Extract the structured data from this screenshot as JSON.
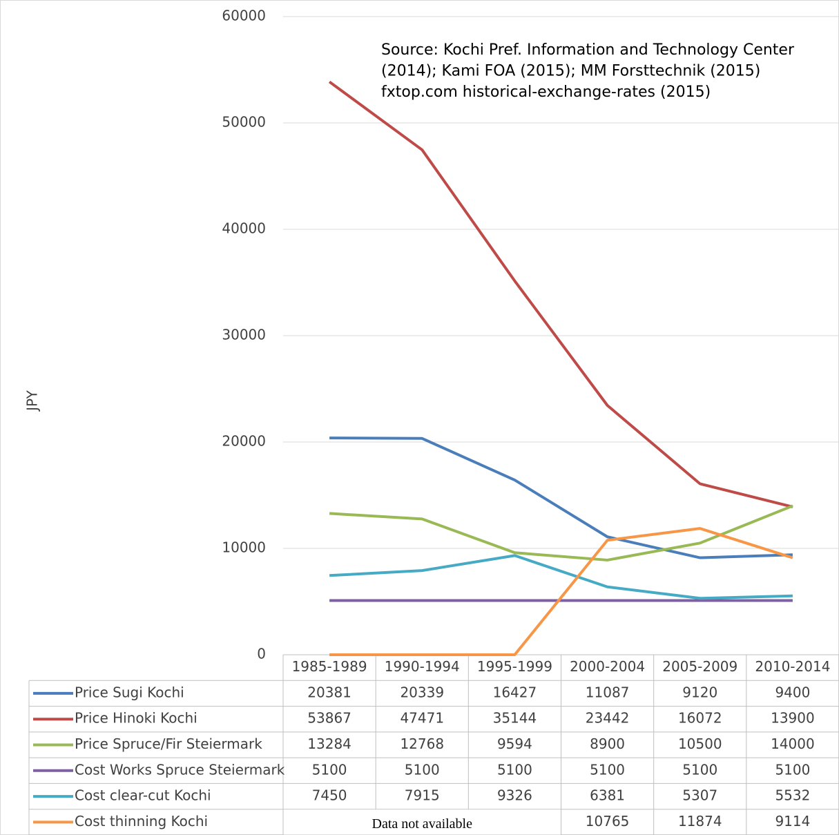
{
  "chart_data": {
    "type": "line",
    "y_label": "JPY",
    "annotation": [
      "Source:  Kochi Pref. Information and Technology Center",
      "(2014); Kami FOA (2015); MM Forsttechnik (2015)",
      "fxtop.com historical-exchange-rates (2015)"
    ],
    "categories": [
      "1985-1989",
      "1990-1994",
      "1995-1999",
      "2000-2004",
      "2005-2009",
      "2010-2014"
    ],
    "series": [
      {
        "name": "Price Sugi Kochi",
        "color": "#4a7ebb",
        "values": [
          20381,
          20339,
          16427,
          11087,
          9120,
          9400
        ]
      },
      {
        "name": "Price Hinoki Kochi",
        "color": "#be4b48",
        "values": [
          53867,
          47471,
          35144,
          23442,
          16072,
          13900
        ]
      },
      {
        "name": "Price Spruce/Fir Steiermark",
        "color": "#98b954",
        "values": [
          13284,
          12768,
          9594,
          8900,
          10500,
          14000
        ]
      },
      {
        "name": "Cost Works Spruce Steiermark",
        "color": "#7d60a0",
        "values": [
          5100,
          5100,
          5100,
          5100,
          5100,
          5100
        ]
      },
      {
        "name": "Cost clear-cut Kochi",
        "color": "#46aac5",
        "values": [
          7450,
          7915,
          9326,
          6381,
          5307,
          5532
        ]
      },
      {
        "name": "Cost thinning Kochi",
        "color": "#f79646",
        "values": [
          0,
          0,
          0,
          10765,
          11874,
          9114
        ],
        "value_labels": [
          null,
          null,
          null,
          "10765",
          "11874",
          "9114"
        ]
      }
    ],
    "na_label": "Data not available",
    "ylim": [
      0,
      60000
    ],
    "yticks": [
      0,
      10000,
      20000,
      30000,
      40000,
      50000,
      60000
    ],
    "grid": true
  }
}
